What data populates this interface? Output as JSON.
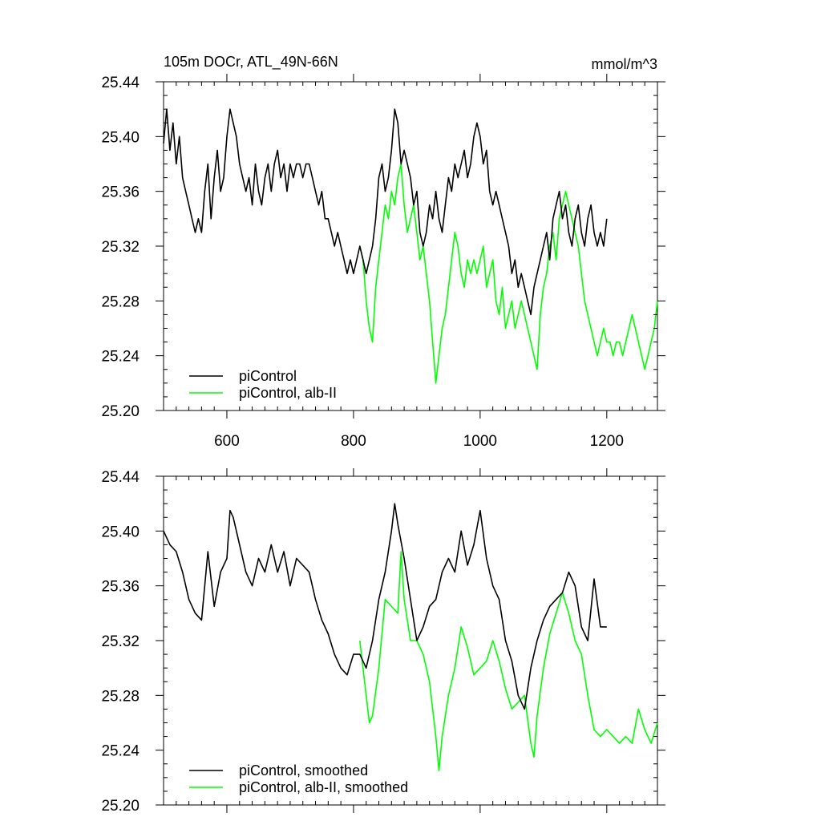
{
  "header": {
    "title": "105m DOCr, ATL_49N-66N",
    "units": "mmol/m^3"
  },
  "colors": {
    "control": "#000000",
    "experiment": "#00ff00"
  },
  "chart_data": [
    {
      "type": "line",
      "panel": "top",
      "title": "105m DOCr, ATL_49N-66N",
      "units": "mmol/m^3",
      "xlim": [
        500,
        1280
      ],
      "ylim": [
        25.2,
        25.44
      ],
      "x_ticks": [
        600,
        800,
        1000,
        1200
      ],
      "x_tick_labels": [
        "600",
        "800",
        "1000",
        "1200"
      ],
      "y_ticks": [
        25.2,
        25.24,
        25.28,
        25.32,
        25.36,
        25.4,
        25.44
      ],
      "y_tick_labels": [
        "25.20",
        "25.24",
        "25.28",
        "25.32",
        "25.36",
        "25.40",
        "25.44"
      ],
      "legend": [
        "piControl",
        "piControl, alb-II"
      ],
      "legend_position": "bottom-left",
      "series": [
        {
          "name": "piControl",
          "color": "#000000",
          "x": [
            500,
            505,
            510,
            515,
            520,
            525,
            530,
            535,
            540,
            545,
            550,
            555,
            560,
            565,
            570,
            575,
            580,
            585,
            590,
            595,
            600,
            605,
            610,
            615,
            620,
            625,
            630,
            635,
            640,
            645,
            650,
            655,
            660,
            665,
            670,
            675,
            680,
            685,
            690,
            695,
            700,
            705,
            710,
            715,
            720,
            725,
            730,
            735,
            740,
            745,
            750,
            755,
            760,
            765,
            770,
            775,
            780,
            785,
            790,
            795,
            800,
            805,
            810,
            815,
            820,
            825,
            830,
            835,
            840,
            845,
            850,
            855,
            860,
            865,
            870,
            875,
            880,
            885,
            890,
            895,
            900,
            905,
            910,
            915,
            920,
            925,
            930,
            935,
            940,
            945,
            950,
            955,
            960,
            965,
            970,
            975,
            980,
            985,
            990,
            995,
            1000,
            1005,
            1010,
            1015,
            1020,
            1025,
            1030,
            1035,
            1040,
            1045,
            1050,
            1055,
            1060,
            1065,
            1070,
            1075,
            1080,
            1085,
            1090,
            1095,
            1100,
            1105,
            1110,
            1115,
            1120,
            1125,
            1130,
            1135,
            1140,
            1145,
            1150,
            1155,
            1160,
            1165,
            1170,
            1175,
            1180,
            1185,
            1190,
            1195,
            1200
          ],
          "y": [
            25.395,
            25.42,
            25.39,
            25.41,
            25.38,
            25.4,
            25.37,
            25.36,
            25.35,
            25.34,
            25.33,
            25.34,
            25.33,
            25.36,
            25.38,
            25.34,
            25.37,
            25.39,
            25.36,
            25.37,
            25.4,
            25.42,
            25.41,
            25.4,
            25.38,
            25.37,
            25.36,
            25.37,
            25.35,
            25.38,
            25.36,
            25.35,
            25.37,
            25.38,
            25.36,
            25.38,
            25.39,
            25.37,
            25.38,
            25.36,
            25.38,
            25.37,
            25.38,
            25.38,
            25.37,
            25.38,
            25.38,
            25.37,
            25.36,
            25.35,
            25.36,
            25.34,
            25.34,
            25.33,
            25.32,
            25.33,
            25.32,
            25.31,
            25.3,
            25.31,
            25.3,
            25.31,
            25.32,
            25.31,
            25.3,
            25.31,
            25.32,
            25.34,
            25.37,
            25.38,
            25.36,
            25.37,
            25.39,
            25.42,
            25.41,
            25.38,
            25.39,
            25.38,
            25.37,
            25.35,
            25.36,
            25.33,
            25.32,
            25.33,
            25.35,
            25.34,
            25.36,
            25.34,
            25.33,
            25.35,
            25.37,
            25.36,
            25.38,
            25.37,
            25.38,
            25.39,
            25.37,
            25.38,
            25.4,
            25.41,
            25.4,
            25.38,
            25.39,
            25.36,
            25.35,
            25.36,
            25.35,
            25.34,
            25.33,
            25.32,
            25.3,
            25.31,
            25.29,
            25.3,
            25.29,
            25.28,
            25.27,
            25.29,
            25.3,
            25.31,
            25.32,
            25.33,
            25.31,
            25.34,
            25.35,
            25.36,
            25.34,
            25.35,
            25.33,
            25.32,
            25.34,
            25.35,
            25.33,
            25.32,
            25.34,
            25.35,
            25.33,
            25.32,
            25.33,
            25.32,
            25.34
          ]
        },
        {
          "name": "piControl, alb-II",
          "color": "#00ff00",
          "x": [
            810,
            815,
            820,
            825,
            830,
            835,
            840,
            845,
            850,
            855,
            860,
            865,
            870,
            875,
            880,
            885,
            890,
            895,
            900,
            905,
            910,
            915,
            920,
            925,
            930,
            935,
            940,
            945,
            950,
            955,
            960,
            965,
            970,
            975,
            980,
            985,
            990,
            995,
            1000,
            1005,
            1010,
            1015,
            1020,
            1025,
            1030,
            1035,
            1040,
            1045,
            1050,
            1055,
            1060,
            1065,
            1070,
            1075,
            1080,
            1085,
            1090,
            1095,
            1100,
            1105,
            1110,
            1115,
            1120,
            1125,
            1130,
            1135,
            1140,
            1145,
            1150,
            1155,
            1160,
            1165,
            1170,
            1175,
            1180,
            1185,
            1190,
            1195,
            1200,
            1205,
            1210,
            1215,
            1220,
            1225,
            1230,
            1235,
            1240,
            1245,
            1250,
            1255,
            1260,
            1265,
            1270,
            1275,
            1280
          ],
          "y": [
            25.32,
            25.31,
            25.28,
            25.26,
            25.25,
            25.29,
            25.31,
            25.33,
            25.35,
            25.34,
            25.36,
            25.35,
            25.37,
            25.38,
            25.35,
            25.33,
            25.34,
            25.35,
            25.33,
            25.31,
            25.32,
            25.3,
            25.28,
            25.25,
            25.22,
            25.24,
            25.26,
            25.27,
            25.29,
            25.31,
            25.33,
            25.32,
            25.3,
            25.29,
            25.31,
            25.3,
            25.31,
            25.3,
            25.31,
            25.32,
            25.29,
            25.3,
            25.31,
            25.28,
            25.27,
            25.29,
            25.26,
            25.27,
            25.28,
            25.26,
            25.27,
            25.28,
            25.27,
            25.26,
            25.25,
            25.24,
            25.23,
            25.27,
            25.29,
            25.3,
            25.32,
            25.33,
            25.31,
            25.34,
            25.35,
            25.36,
            25.35,
            25.34,
            25.33,
            25.32,
            25.3,
            25.28,
            25.27,
            25.26,
            25.25,
            25.24,
            25.25,
            25.26,
            25.25,
            25.25,
            25.24,
            25.25,
            25.25,
            25.24,
            25.25,
            25.26,
            25.27,
            25.26,
            25.25,
            25.24,
            25.23,
            25.24,
            25.25,
            25.26,
            25.28
          ]
        }
      ]
    },
    {
      "type": "line",
      "panel": "bottom",
      "xlim": [
        500,
        1280
      ],
      "ylim": [
        25.2,
        25.44
      ],
      "x_ticks": [
        600,
        800,
        1000,
        1200
      ],
      "y_ticks": [
        25.2,
        25.24,
        25.28,
        25.32,
        25.36,
        25.4,
        25.44
      ],
      "y_tick_labels": [
        "25.20",
        "25.24",
        "25.28",
        "25.32",
        "25.36",
        "25.40",
        "25.44"
      ],
      "legend": [
        "piControl, smoothed",
        "piControl, alb-II, smoothed"
      ],
      "legend_position": "bottom-left",
      "series": [
        {
          "name": "piControl, smoothed",
          "color": "#000000",
          "x": [
            500,
            510,
            520,
            530,
            540,
            550,
            560,
            570,
            580,
            590,
            600,
            605,
            610,
            620,
            630,
            640,
            650,
            660,
            670,
            680,
            690,
            700,
            710,
            720,
            730,
            740,
            750,
            760,
            770,
            780,
            790,
            800,
            810,
            820,
            830,
            840,
            850,
            860,
            865,
            870,
            880,
            890,
            900,
            910,
            920,
            930,
            940,
            950,
            960,
            970,
            980,
            990,
            1000,
            1010,
            1020,
            1030,
            1040,
            1050,
            1060,
            1070,
            1080,
            1090,
            1100,
            1110,
            1120,
            1130,
            1140,
            1150,
            1160,
            1170,
            1180,
            1190,
            1200
          ],
          "y": [
            25.4,
            25.39,
            25.385,
            25.37,
            25.35,
            25.34,
            25.335,
            25.385,
            25.345,
            25.37,
            25.38,
            25.415,
            25.41,
            25.39,
            25.37,
            25.36,
            25.38,
            25.37,
            25.39,
            25.37,
            25.385,
            25.36,
            25.38,
            25.375,
            25.37,
            25.35,
            25.335,
            25.325,
            25.31,
            25.3,
            25.295,
            25.31,
            25.31,
            25.3,
            25.32,
            25.35,
            25.37,
            25.4,
            25.42,
            25.405,
            25.38,
            25.35,
            25.32,
            25.33,
            25.345,
            25.35,
            25.37,
            25.38,
            25.37,
            25.4,
            25.375,
            25.39,
            25.415,
            25.38,
            25.36,
            25.35,
            25.32,
            25.305,
            25.28,
            25.27,
            25.3,
            25.32,
            25.335,
            25.345,
            25.35,
            25.355,
            25.37,
            25.36,
            25.33,
            25.32,
            25.365,
            25.33,
            25.33
          ]
        },
        {
          "name": "piControl, alb-II, smoothed",
          "color": "#00ff00",
          "x": [
            810,
            820,
            825,
            830,
            840,
            850,
            860,
            870,
            875,
            880,
            890,
            900,
            910,
            920,
            930,
            935,
            940,
            950,
            960,
            970,
            980,
            990,
            1000,
            1010,
            1020,
            1030,
            1040,
            1050,
            1060,
            1070,
            1080,
            1085,
            1090,
            1100,
            1110,
            1120,
            1130,
            1140,
            1150,
            1160,
            1170,
            1180,
            1190,
            1200,
            1210,
            1220,
            1230,
            1240,
            1250,
            1260,
            1270,
            1280
          ],
          "y": [
            25.32,
            25.28,
            25.26,
            25.265,
            25.3,
            25.35,
            25.345,
            25.34,
            25.385,
            25.35,
            25.32,
            25.32,
            25.31,
            25.29,
            25.25,
            25.225,
            25.25,
            25.28,
            25.3,
            25.33,
            25.315,
            25.295,
            25.3,
            25.305,
            25.32,
            25.305,
            25.285,
            25.27,
            25.275,
            25.28,
            25.245,
            25.235,
            25.265,
            25.3,
            25.325,
            25.34,
            25.355,
            25.34,
            25.32,
            25.31,
            25.28,
            25.255,
            25.25,
            25.255,
            25.25,
            25.245,
            25.25,
            25.245,
            25.27,
            25.255,
            25.245,
            25.26
          ]
        }
      ]
    }
  ]
}
